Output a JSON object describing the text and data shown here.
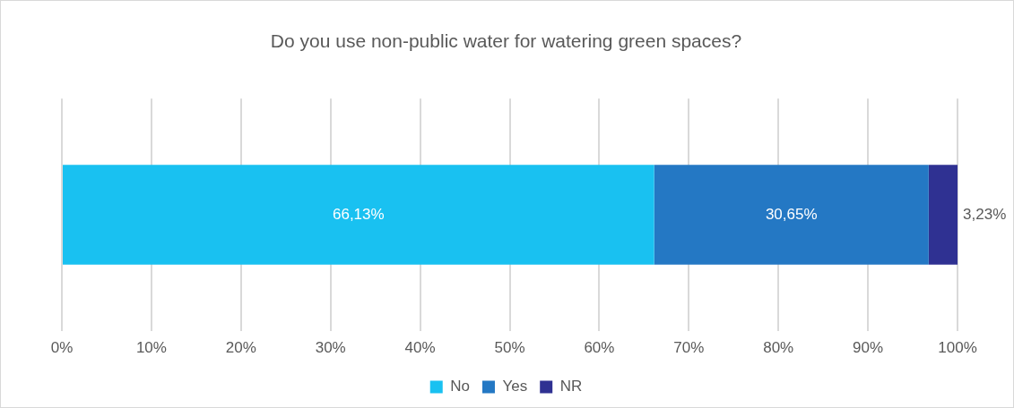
{
  "chart_data": {
    "type": "bar",
    "title": "Do you use non-public water for watering green spaces?",
    "orientation": "horizontal",
    "stacked": true,
    "categories": [
      null
    ],
    "series": [
      {
        "name": "No",
        "color": "#19c1f1",
        "values": [
          66.13
        ],
        "value_labels": [
          "66,13%"
        ]
      },
      {
        "name": "Yes",
        "color": "#2478c4",
        "values": [
          30.65
        ],
        "value_labels": [
          "30,65%"
        ]
      },
      {
        "name": "NR",
        "color": "#2f3192",
        "values": [
          3.23
        ],
        "value_labels": [
          "3,23%"
        ]
      }
    ],
    "xlim": [
      0,
      100
    ],
    "xticks": [
      {
        "value": 0,
        "label": "0%"
      },
      {
        "value": 10,
        "label": "10%"
      },
      {
        "value": 20,
        "label": "20%"
      },
      {
        "value": 30,
        "label": "30%"
      },
      {
        "value": 40,
        "label": "40%"
      },
      {
        "value": 50,
        "label": "50%"
      },
      {
        "value": 60,
        "label": "60%"
      },
      {
        "value": 70,
        "label": "70%"
      },
      {
        "value": 80,
        "label": "80%"
      },
      {
        "value": 90,
        "label": "90%"
      },
      {
        "value": 100,
        "label": "100%"
      }
    ],
    "grid": "x",
    "legend": "bottom"
  }
}
